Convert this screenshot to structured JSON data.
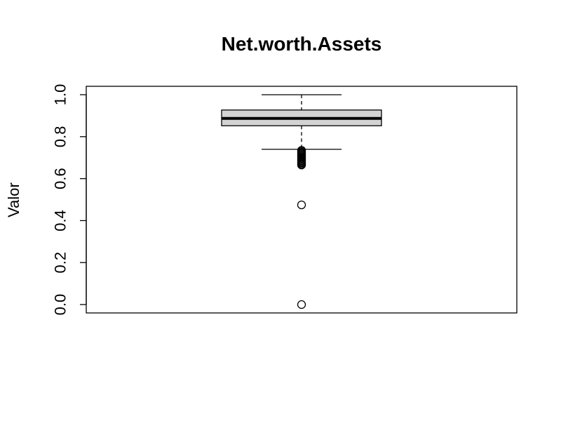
{
  "chart_data": {
    "type": "boxplot",
    "title": "Net.worth.Assets",
    "xlabel": "",
    "ylabel": "Valor",
    "ylim": [
      -0.04,
      1.04
    ],
    "yticks": [
      0.0,
      0.2,
      0.4,
      0.6,
      0.8,
      1.0
    ],
    "ytick_labels": [
      "0.0",
      "0.2",
      "0.4",
      "0.6",
      "0.8",
      "1.0"
    ],
    "box": {
      "whisker_low": 0.74,
      "q1": 0.852,
      "median": 0.887,
      "q3": 0.927,
      "whisker_high": 1.0
    },
    "outliers": [
      0.735,
      0.73,
      0.725,
      0.72,
      0.715,
      0.71,
      0.705,
      0.7,
      0.695,
      0.69,
      0.685,
      0.68,
      0.675,
      0.67,
      0.665,
      0.475,
      0.0
    ],
    "colors": {
      "box_fill": "#d3d3d3",
      "stroke": "#000000"
    }
  }
}
